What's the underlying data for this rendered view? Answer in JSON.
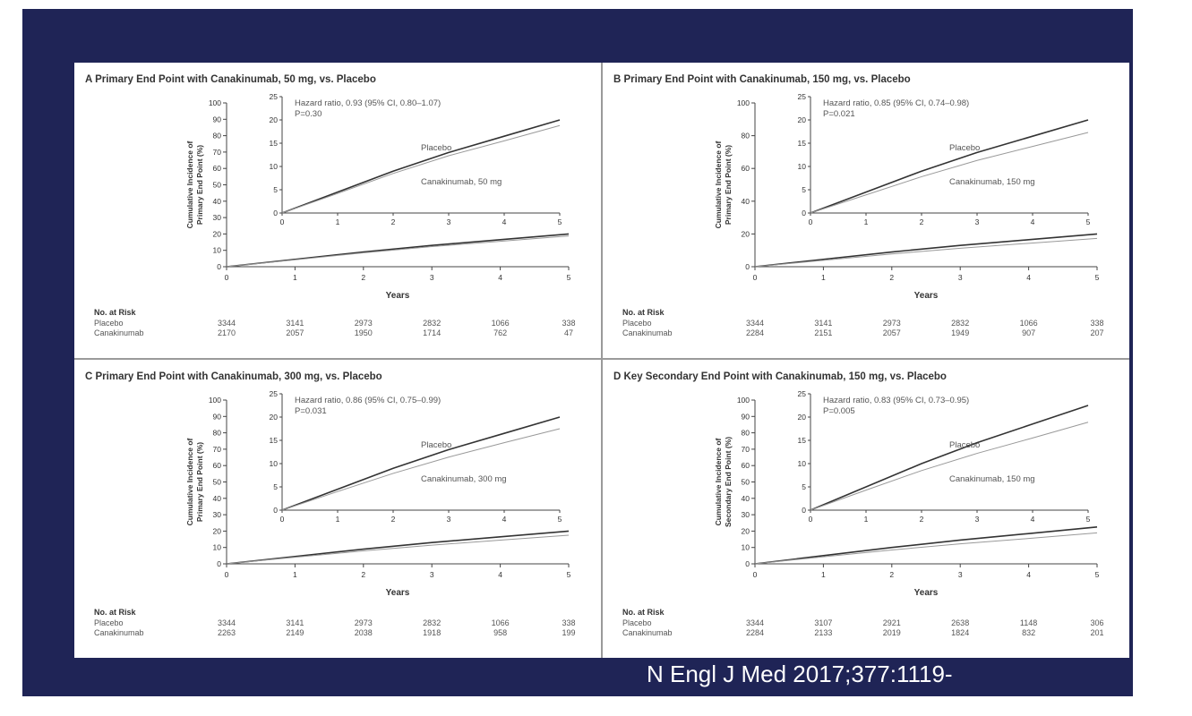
{
  "citation": "N Engl J Med 2017;377:1119-",
  "risk_x": [
    0,
    1,
    2,
    3,
    4,
    5
  ],
  "chart_data": [
    {
      "type": "line",
      "title": "A Primary End Point with Canakinumab, 50 mg, vs. Placebo",
      "xlabel": "Years",
      "ylabel": "Cumulative Incidence of Primary End Point (%)",
      "xlim": [
        0,
        5
      ],
      "ylim": [
        0,
        100
      ],
      "x_ticks": [
        0,
        1,
        2,
        3,
        4,
        5
      ],
      "y_ticks": [
        0,
        10,
        20,
        30,
        40,
        50,
        60,
        70,
        80,
        90,
        100
      ],
      "inset": {
        "ylim": [
          0,
          25
        ],
        "y_ticks": [
          0,
          5,
          10,
          15,
          20,
          25
        ],
        "x_ticks": [
          0,
          1,
          2,
          3,
          4,
          5
        ]
      },
      "annotation": [
        "Hazard ratio, 0.93 (95% CI, 0.80–1.07)",
        "P=0.30"
      ],
      "series": [
        {
          "name": "Placebo",
          "x": [
            0,
            1,
            2,
            3,
            4,
            5
          ],
          "y": [
            0,
            4.5,
            9.0,
            13.0,
            16.5,
            20.0
          ]
        },
        {
          "name": "Canakinumab, 50 mg",
          "x": [
            0,
            1,
            2,
            3,
            4,
            5
          ],
          "y": [
            0,
            4.2,
            8.5,
            12.3,
            15.5,
            18.8
          ]
        }
      ],
      "risk_table": {
        "header": "No. at Risk",
        "rows": [
          {
            "label": "Placebo",
            "values": [
              "3344",
              "3141",
              "2973",
              "2832",
              "1066",
              "338"
            ]
          },
          {
            "label": "Canakinumab",
            "values": [
              "2170",
              "2057",
              "1950",
              "1714",
              "762",
              "47"
            ]
          }
        ]
      }
    },
    {
      "type": "line",
      "title": "B Primary End Point with Canakinumab, 150 mg, vs. Placebo",
      "xlabel": "Years",
      "ylabel": "Cumulative Incidence of Primary End Point (%)",
      "xlim": [
        0,
        5
      ],
      "ylim": [
        0,
        100
      ],
      "x_ticks": [
        0,
        1,
        2,
        3,
        4,
        5
      ],
      "y_ticks": [
        0,
        20,
        40,
        60,
        80,
        100
      ],
      "inset": {
        "ylim": [
          0,
          25
        ],
        "y_ticks": [
          0,
          5,
          10,
          15,
          20,
          25
        ],
        "x_ticks": [
          0,
          1,
          2,
          3,
          4,
          5
        ]
      },
      "annotation": [
        "Hazard ratio, 0.85 (95% CI, 0.74–0.98)",
        "P=0.021"
      ],
      "series": [
        {
          "name": "Placebo",
          "x": [
            0,
            1,
            2,
            3,
            4,
            5
          ],
          "y": [
            0,
            4.5,
            9.0,
            13.0,
            16.5,
            20.0
          ]
        },
        {
          "name": "Canakinumab, 150 mg",
          "x": [
            0,
            1,
            2,
            3,
            4,
            5
          ],
          "y": [
            0,
            3.9,
            7.8,
            11.3,
            14.3,
            17.3
          ]
        }
      ],
      "risk_table": {
        "header": "No. at Risk",
        "rows": [
          {
            "label": "Placebo",
            "values": [
              "3344",
              "3141",
              "2973",
              "2832",
              "1066",
              "338"
            ]
          },
          {
            "label": "Canakinumab",
            "values": [
              "2284",
              "2151",
              "2057",
              "1949",
              "907",
              "207"
            ]
          }
        ]
      }
    },
    {
      "type": "line",
      "title": "C Primary End Point with Canakinumab, 300 mg, vs. Placebo",
      "xlabel": "Years",
      "ylabel": "Cumulative Incidence of Primary End Point (%)",
      "xlim": [
        0,
        5
      ],
      "ylim": [
        0,
        100
      ],
      "x_ticks": [
        0,
        1,
        2,
        3,
        4,
        5
      ],
      "y_ticks": [
        0,
        10,
        20,
        30,
        40,
        50,
        60,
        70,
        80,
        90,
        100
      ],
      "inset": {
        "ylim": [
          0,
          25
        ],
        "y_ticks": [
          0,
          5,
          10,
          15,
          20,
          25
        ],
        "x_ticks": [
          0,
          1,
          2,
          3,
          4,
          5
        ]
      },
      "annotation": [
        "Hazard ratio, 0.86 (95% CI, 0.75–0.99)",
        "P=0.031"
      ],
      "series": [
        {
          "name": "Placebo",
          "x": [
            0,
            1,
            2,
            3,
            4,
            5
          ],
          "y": [
            0,
            4.5,
            9.0,
            13.0,
            16.5,
            20.0
          ]
        },
        {
          "name": "Canakinumab, 300 mg",
          "x": [
            0,
            1,
            2,
            3,
            4,
            5
          ],
          "y": [
            0,
            4.0,
            7.9,
            11.4,
            14.5,
            17.5
          ]
        }
      ],
      "risk_table": {
        "header": "No. at Risk",
        "rows": [
          {
            "label": "Placebo",
            "values": [
              "3344",
              "3141",
              "2973",
              "2832",
              "1066",
              "338"
            ]
          },
          {
            "label": "Canakinumab",
            "values": [
              "2263",
              "2149",
              "2038",
              "1918",
              "958",
              "199"
            ]
          }
        ]
      }
    },
    {
      "type": "line",
      "title": "D Key Secondary End Point with Canakinumab, 150 mg, vs. Placebo",
      "xlabel": "Years",
      "ylabel": "Cumulative Incidence of Secondary End Point (%)",
      "xlim": [
        0,
        5
      ],
      "ylim": [
        0,
        100
      ],
      "x_ticks": [
        0,
        1,
        2,
        3,
        4,
        5
      ],
      "y_ticks": [
        0,
        10,
        20,
        30,
        40,
        50,
        60,
        70,
        80,
        90,
        100
      ],
      "inset": {
        "ylim": [
          0,
          25
        ],
        "y_ticks": [
          0,
          5,
          10,
          15,
          20,
          25
        ],
        "x_ticks": [
          0,
          1,
          2,
          3,
          4,
          5
        ]
      },
      "annotation": [
        "Hazard ratio, 0.83 (95% CI, 0.73–0.95)",
        "P=0.005"
      ],
      "series": [
        {
          "name": "Placebo",
          "x": [
            0,
            1,
            2,
            3,
            4,
            5
          ],
          "y": [
            0,
            5.0,
            10.0,
            14.5,
            18.5,
            22.5
          ]
        },
        {
          "name": "Canakinumab, 150 mg",
          "x": [
            0,
            1,
            2,
            3,
            4,
            5
          ],
          "y": [
            0,
            4.3,
            8.5,
            12.2,
            15.5,
            18.9
          ]
        }
      ],
      "risk_table": {
        "header": "No. at Risk",
        "rows": [
          {
            "label": "Placebo",
            "values": [
              "3344",
              "3107",
              "2921",
              "2638",
              "1148",
              "306"
            ]
          },
          {
            "label": "Canakinumab",
            "values": [
              "2284",
              "2133",
              "2019",
              "1824",
              "832",
              "201"
            ]
          }
        ]
      }
    }
  ]
}
